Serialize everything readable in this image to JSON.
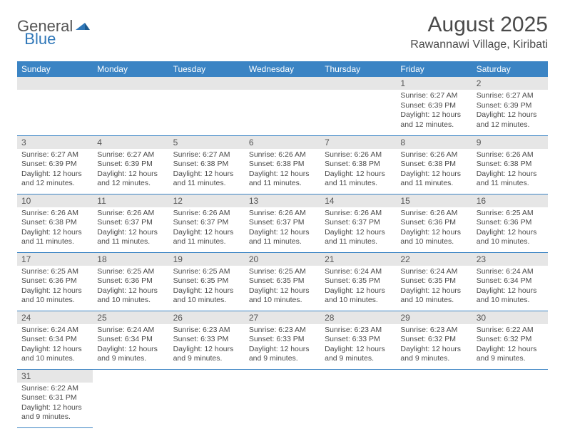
{
  "logo": {
    "general": "General",
    "blue": "Blue"
  },
  "title": "August 2025",
  "location": "Rawannawi Village, Kiribati",
  "header_bg": "#3b84c4",
  "day_header_bg": "#e6e6e6",
  "columns": [
    "Sunday",
    "Monday",
    "Tuesday",
    "Wednesday",
    "Thursday",
    "Friday",
    "Saturday"
  ],
  "weeks": [
    [
      null,
      null,
      null,
      null,
      null,
      {
        "n": "1",
        "lines": [
          "Sunrise: 6:27 AM",
          "Sunset: 6:39 PM",
          "Daylight: 12 hours",
          "and 12 minutes."
        ]
      },
      {
        "n": "2",
        "lines": [
          "Sunrise: 6:27 AM",
          "Sunset: 6:39 PM",
          "Daylight: 12 hours",
          "and 12 minutes."
        ]
      }
    ],
    [
      {
        "n": "3",
        "lines": [
          "Sunrise: 6:27 AM",
          "Sunset: 6:39 PM",
          "Daylight: 12 hours",
          "and 12 minutes."
        ]
      },
      {
        "n": "4",
        "lines": [
          "Sunrise: 6:27 AM",
          "Sunset: 6:39 PM",
          "Daylight: 12 hours",
          "and 12 minutes."
        ]
      },
      {
        "n": "5",
        "lines": [
          "Sunrise: 6:27 AM",
          "Sunset: 6:38 PM",
          "Daylight: 12 hours",
          "and 11 minutes."
        ]
      },
      {
        "n": "6",
        "lines": [
          "Sunrise: 6:26 AM",
          "Sunset: 6:38 PM",
          "Daylight: 12 hours",
          "and 11 minutes."
        ]
      },
      {
        "n": "7",
        "lines": [
          "Sunrise: 6:26 AM",
          "Sunset: 6:38 PM",
          "Daylight: 12 hours",
          "and 11 minutes."
        ]
      },
      {
        "n": "8",
        "lines": [
          "Sunrise: 6:26 AM",
          "Sunset: 6:38 PM",
          "Daylight: 12 hours",
          "and 11 minutes."
        ]
      },
      {
        "n": "9",
        "lines": [
          "Sunrise: 6:26 AM",
          "Sunset: 6:38 PM",
          "Daylight: 12 hours",
          "and 11 minutes."
        ]
      }
    ],
    [
      {
        "n": "10",
        "lines": [
          "Sunrise: 6:26 AM",
          "Sunset: 6:38 PM",
          "Daylight: 12 hours",
          "and 11 minutes."
        ]
      },
      {
        "n": "11",
        "lines": [
          "Sunrise: 6:26 AM",
          "Sunset: 6:37 PM",
          "Daylight: 12 hours",
          "and 11 minutes."
        ]
      },
      {
        "n": "12",
        "lines": [
          "Sunrise: 6:26 AM",
          "Sunset: 6:37 PM",
          "Daylight: 12 hours",
          "and 11 minutes."
        ]
      },
      {
        "n": "13",
        "lines": [
          "Sunrise: 6:26 AM",
          "Sunset: 6:37 PM",
          "Daylight: 12 hours",
          "and 11 minutes."
        ]
      },
      {
        "n": "14",
        "lines": [
          "Sunrise: 6:26 AM",
          "Sunset: 6:37 PM",
          "Daylight: 12 hours",
          "and 11 minutes."
        ]
      },
      {
        "n": "15",
        "lines": [
          "Sunrise: 6:26 AM",
          "Sunset: 6:36 PM",
          "Daylight: 12 hours",
          "and 10 minutes."
        ]
      },
      {
        "n": "16",
        "lines": [
          "Sunrise: 6:25 AM",
          "Sunset: 6:36 PM",
          "Daylight: 12 hours",
          "and 10 minutes."
        ]
      }
    ],
    [
      {
        "n": "17",
        "lines": [
          "Sunrise: 6:25 AM",
          "Sunset: 6:36 PM",
          "Daylight: 12 hours",
          "and 10 minutes."
        ]
      },
      {
        "n": "18",
        "lines": [
          "Sunrise: 6:25 AM",
          "Sunset: 6:36 PM",
          "Daylight: 12 hours",
          "and 10 minutes."
        ]
      },
      {
        "n": "19",
        "lines": [
          "Sunrise: 6:25 AM",
          "Sunset: 6:35 PM",
          "Daylight: 12 hours",
          "and 10 minutes."
        ]
      },
      {
        "n": "20",
        "lines": [
          "Sunrise: 6:25 AM",
          "Sunset: 6:35 PM",
          "Daylight: 12 hours",
          "and 10 minutes."
        ]
      },
      {
        "n": "21",
        "lines": [
          "Sunrise: 6:24 AM",
          "Sunset: 6:35 PM",
          "Daylight: 12 hours",
          "and 10 minutes."
        ]
      },
      {
        "n": "22",
        "lines": [
          "Sunrise: 6:24 AM",
          "Sunset: 6:35 PM",
          "Daylight: 12 hours",
          "and 10 minutes."
        ]
      },
      {
        "n": "23",
        "lines": [
          "Sunrise: 6:24 AM",
          "Sunset: 6:34 PM",
          "Daylight: 12 hours",
          "and 10 minutes."
        ]
      }
    ],
    [
      {
        "n": "24",
        "lines": [
          "Sunrise: 6:24 AM",
          "Sunset: 6:34 PM",
          "Daylight: 12 hours",
          "and 10 minutes."
        ]
      },
      {
        "n": "25",
        "lines": [
          "Sunrise: 6:24 AM",
          "Sunset: 6:34 PM",
          "Daylight: 12 hours",
          "and 9 minutes."
        ]
      },
      {
        "n": "26",
        "lines": [
          "Sunrise: 6:23 AM",
          "Sunset: 6:33 PM",
          "Daylight: 12 hours",
          "and 9 minutes."
        ]
      },
      {
        "n": "27",
        "lines": [
          "Sunrise: 6:23 AM",
          "Sunset: 6:33 PM",
          "Daylight: 12 hours",
          "and 9 minutes."
        ]
      },
      {
        "n": "28",
        "lines": [
          "Sunrise: 6:23 AM",
          "Sunset: 6:33 PM",
          "Daylight: 12 hours",
          "and 9 minutes."
        ]
      },
      {
        "n": "29",
        "lines": [
          "Sunrise: 6:23 AM",
          "Sunset: 6:32 PM",
          "Daylight: 12 hours",
          "and 9 minutes."
        ]
      },
      {
        "n": "30",
        "lines": [
          "Sunrise: 6:22 AM",
          "Sunset: 6:32 PM",
          "Daylight: 12 hours",
          "and 9 minutes."
        ]
      }
    ],
    [
      {
        "n": "31",
        "lines": [
          "Sunrise: 6:22 AM",
          "Sunset: 6:31 PM",
          "Daylight: 12 hours",
          "and 9 minutes."
        ]
      },
      null,
      null,
      null,
      null,
      null,
      null
    ]
  ]
}
